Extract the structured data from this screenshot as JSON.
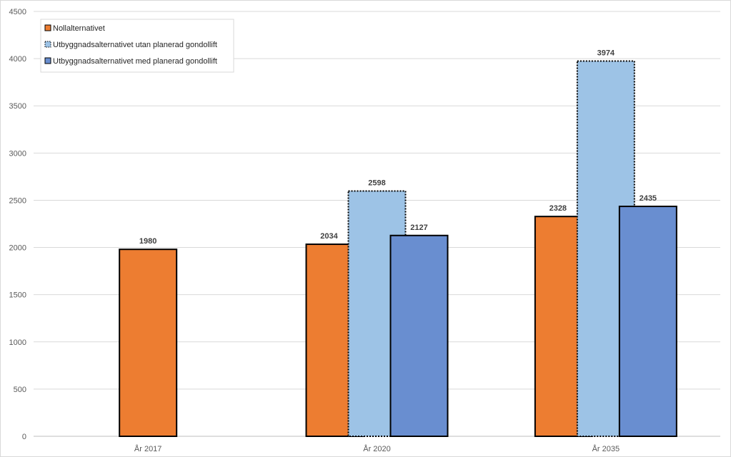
{
  "chart_data": {
    "type": "bar",
    "categories": [
      "År 2017",
      "År 2020",
      "År 2035"
    ],
    "series": [
      {
        "name": "Nollalternativet",
        "values": [
          1980,
          2034,
          2328
        ],
        "color": "#ED7D31",
        "border": "solid"
      },
      {
        "name": "Utbyggnadsalternativet utan planerad gondollift",
        "values": [
          null,
          2598,
          3974
        ],
        "color": "#9DC3E6",
        "border": "dotted"
      },
      {
        "name": "Utbyggnadsalternativet med planerad gondollift",
        "values": [
          null,
          2127,
          2435
        ],
        "color": "#698ED0",
        "border": "solid"
      }
    ],
    "ylim": [
      0,
      4500
    ],
    "yticks": [
      0,
      500,
      1000,
      1500,
      2000,
      2500,
      3000,
      3500,
      4000,
      4500
    ],
    "title": "",
    "xlabel": "",
    "ylabel": "",
    "grid": true,
    "legend_position": "top-left",
    "data_labels": true
  }
}
